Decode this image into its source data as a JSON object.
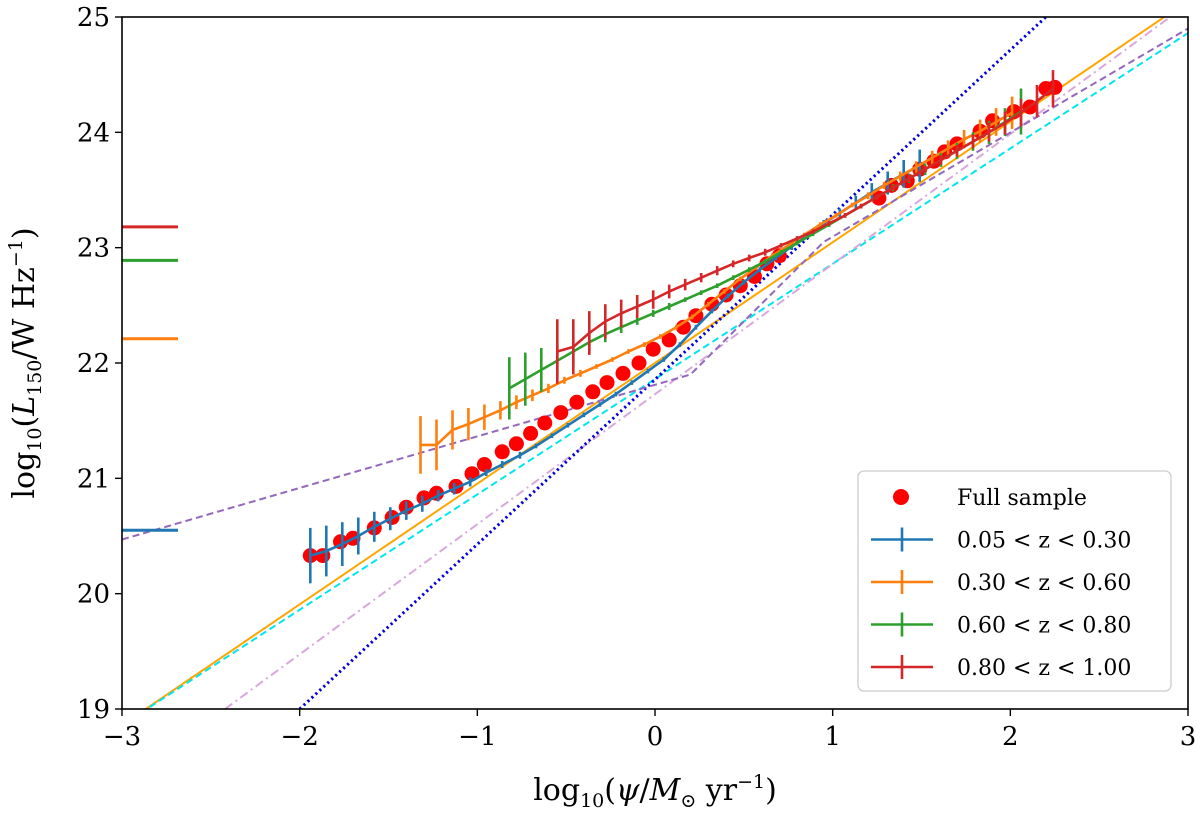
{
  "chart_data": {
    "type": "line",
    "xlabel": "log10(ψ/M⊙ yr−1)",
    "ylabel": "log10(L150/W Hz−1)",
    "xlim": [
      -3,
      3
    ],
    "ylim": [
      19,
      25
    ],
    "xticks": [
      {
        "v": -3,
        "label": "−3"
      },
      {
        "v": -2,
        "label": "−2"
      },
      {
        "v": -1,
        "label": "−1"
      },
      {
        "v": 0,
        "label": "0"
      },
      {
        "v": 1,
        "label": "1"
      },
      {
        "v": 2,
        "label": "2"
      },
      {
        "v": 3,
        "label": "3"
      }
    ],
    "yticks": [
      {
        "v": 19,
        "label": "19"
      },
      {
        "v": 20,
        "label": "20"
      },
      {
        "v": 21,
        "label": "21"
      },
      {
        "v": 22,
        "label": "22"
      },
      {
        "v": 23,
        "label": "23"
      },
      {
        "v": 24,
        "label": "24"
      },
      {
        "v": 25,
        "label": "25"
      }
    ],
    "full_sample": {
      "name": "Full sample",
      "color": "#ff0000",
      "points": [
        [
          -1.94,
          20.33
        ],
        [
          -1.87,
          20.33
        ],
        [
          -1.77,
          20.45
        ],
        [
          -1.7,
          20.48
        ],
        [
          -1.58,
          20.57
        ],
        [
          -1.48,
          20.66
        ],
        [
          -1.4,
          20.75
        ],
        [
          -1.3,
          20.83
        ],
        [
          -1.23,
          20.87
        ],
        [
          -1.12,
          20.93
        ],
        [
          -1.03,
          21.04
        ],
        [
          -0.96,
          21.12
        ],
        [
          -0.86,
          21.23
        ],
        [
          -0.78,
          21.3
        ],
        [
          -0.7,
          21.39
        ],
        [
          -0.62,
          21.48
        ],
        [
          -0.53,
          21.57
        ],
        [
          -0.44,
          21.66
        ],
        [
          -0.35,
          21.75
        ],
        [
          -0.27,
          21.83
        ],
        [
          -0.18,
          21.91
        ],
        [
          -0.09,
          22.0
        ],
        [
          -0.01,
          22.12
        ],
        [
          0.08,
          22.2
        ],
        [
          0.16,
          22.31
        ],
        [
          0.23,
          22.41
        ],
        [
          0.32,
          22.51
        ],
        [
          0.4,
          22.59
        ],
        [
          0.48,
          22.67
        ],
        [
          0.56,
          22.75
        ],
        [
          0.63,
          22.86
        ],
        [
          0.7,
          22.93
        ],
        [
          1.26,
          23.43
        ],
        [
          1.33,
          23.54
        ],
        [
          1.42,
          23.58
        ],
        [
          1.49,
          23.68
        ],
        [
          1.57,
          23.75
        ],
        [
          1.63,
          23.83
        ],
        [
          1.7,
          23.9
        ],
        [
          1.83,
          24.01
        ],
        [
          1.9,
          24.1
        ],
        [
          2.02,
          24.18
        ],
        [
          2.11,
          24.22
        ],
        [
          2.2,
          24.38
        ],
        [
          2.25,
          24.39
        ]
      ]
    },
    "series": [
      {
        "name": "0.05 < z < 0.30",
        "color": "#1f77b4",
        "baseline": 20.55,
        "x": [
          -1.94,
          -1.85,
          -1.76,
          -1.67,
          -1.58,
          -1.49,
          -1.4,
          -1.31,
          -1.22,
          -1.13,
          -1.04,
          -0.95,
          -0.86,
          -0.76,
          -0.67,
          -0.58,
          -0.49,
          -0.4,
          -0.31,
          -0.22,
          -0.13,
          -0.04,
          0.05,
          0.14,
          0.23,
          0.32,
          0.41,
          0.5,
          0.59,
          0.68,
          0.77,
          0.86,
          0.95,
          1.04,
          1.13,
          1.22,
          1.31,
          1.4,
          1.49
        ],
        "y": [
          20.33,
          20.37,
          20.43,
          20.5,
          20.58,
          20.65,
          20.72,
          20.78,
          20.85,
          20.91,
          20.97,
          21.05,
          21.12,
          21.2,
          21.28,
          21.37,
          21.46,
          21.55,
          21.64,
          21.73,
          21.83,
          21.93,
          22.03,
          22.16,
          22.31,
          22.45,
          22.58,
          22.7,
          22.81,
          22.91,
          23.01,
          23.11,
          23.21,
          23.3,
          23.39,
          23.48,
          23.56,
          23.64,
          23.71
        ],
        "err": [
          0.24,
          0.22,
          0.19,
          0.16,
          0.13,
          0.1,
          0.08,
          0.07,
          0.05,
          0.05,
          0.04,
          0.03,
          0.03,
          0.03,
          0.02,
          0.02,
          0.02,
          0.02,
          0.02,
          0.02,
          0.02,
          0.02,
          0.02,
          0.02,
          0.02,
          0.02,
          0.02,
          0.02,
          0.02,
          0.02,
          0.03,
          0.03,
          0.03,
          0.04,
          0.06,
          0.08,
          0.1,
          0.12,
          0.14
        ]
      },
      {
        "name": "0.30 < z < 0.60",
        "color": "#ff7f0e",
        "baseline": 22.21,
        "x": [
          -1.32,
          -1.23,
          -1.14,
          -1.05,
          -0.96,
          -0.87,
          -0.78,
          -0.69,
          -0.6,
          -0.51,
          -0.42,
          -0.33,
          -0.24,
          -0.15,
          -0.06,
          0.03,
          0.12,
          0.21,
          0.3,
          0.39,
          0.48,
          0.57,
          0.66,
          0.75,
          0.84,
          0.93,
          1.02,
          1.11,
          1.2,
          1.29,
          1.38,
          1.47,
          1.56,
          1.65,
          1.74,
          1.83,
          1.92,
          2.01
        ],
        "y": [
          21.29,
          21.29,
          21.42,
          21.47,
          21.53,
          21.59,
          21.66,
          21.72,
          21.78,
          21.85,
          21.91,
          21.97,
          22.03,
          22.1,
          22.16,
          22.23,
          22.31,
          22.4,
          22.51,
          22.62,
          22.73,
          22.83,
          22.93,
          23.02,
          23.11,
          23.2,
          23.28,
          23.37,
          23.45,
          23.54,
          23.62,
          23.7,
          23.78,
          23.86,
          23.94,
          24.01,
          24.09,
          24.17
        ],
        "err": [
          0.25,
          0.22,
          0.17,
          0.14,
          0.11,
          0.08,
          0.06,
          0.05,
          0.04,
          0.03,
          0.03,
          0.02,
          0.02,
          0.02,
          0.02,
          0.02,
          0.02,
          0.02,
          0.02,
          0.02,
          0.02,
          0.02,
          0.02,
          0.02,
          0.02,
          0.02,
          0.02,
          0.02,
          0.03,
          0.03,
          0.04,
          0.05,
          0.06,
          0.07,
          0.08,
          0.1,
          0.12,
          0.14
        ]
      },
      {
        "name": "0.60 < z < 0.80",
        "color": "#2ca02c",
        "baseline": 22.89,
        "x": [
          -0.82,
          -0.73,
          -0.64,
          -0.55,
          -0.46,
          -0.37,
          -0.28,
          -0.19,
          -0.1,
          -0.01,
          0.08,
          0.17,
          0.26,
          0.35,
          0.44,
          0.53,
          0.62,
          0.71,
          0.8,
          0.89,
          0.98,
          1.07,
          1.16,
          1.25,
          1.34,
          1.43,
          1.52,
          1.61,
          1.7,
          1.79,
          1.88,
          1.97,
          2.06
        ],
        "y": [
          21.78,
          21.86,
          21.94,
          22.02,
          22.1,
          22.18,
          22.25,
          22.31,
          22.37,
          22.43,
          22.49,
          22.55,
          22.61,
          22.67,
          22.74,
          22.81,
          22.88,
          22.96,
          23.04,
          23.12,
          23.2,
          23.28,
          23.36,
          23.44,
          23.52,
          23.6,
          23.68,
          23.76,
          23.84,
          23.92,
          24.0,
          24.09,
          24.18
        ],
        "err": [
          0.27,
          0.23,
          0.19,
          0.15,
          0.12,
          0.09,
          0.07,
          0.05,
          0.04,
          0.03,
          0.03,
          0.02,
          0.02,
          0.02,
          0.02,
          0.02,
          0.02,
          0.02,
          0.02,
          0.02,
          0.02,
          0.02,
          0.02,
          0.02,
          0.03,
          0.04,
          0.05,
          0.06,
          0.07,
          0.08,
          0.1,
          0.12,
          0.2
        ]
      },
      {
        "name": "0.80 < z < 1.00",
        "color": "#d62728",
        "baseline": 23.18,
        "x": [
          -0.55,
          -0.46,
          -0.37,
          -0.28,
          -0.19,
          -0.1,
          -0.01,
          0.08,
          0.17,
          0.26,
          0.35,
          0.44,
          0.53,
          0.62,
          0.71,
          0.8,
          0.89,
          0.98,
          1.07,
          1.16,
          1.25,
          1.34,
          1.43,
          1.52,
          1.61,
          1.7,
          1.79,
          1.88,
          1.97,
          2.06,
          2.15,
          2.24
        ],
        "y": [
          22.1,
          22.14,
          22.26,
          22.36,
          22.43,
          22.49,
          22.55,
          22.62,
          22.68,
          22.74,
          22.8,
          22.86,
          22.91,
          22.96,
          23.02,
          23.08,
          23.14,
          23.21,
          23.28,
          23.36,
          23.44,
          23.52,
          23.6,
          23.68,
          23.76,
          23.84,
          23.92,
          24.0,
          24.08,
          24.17,
          24.27,
          24.38
        ],
        "err": [
          0.28,
          0.24,
          0.19,
          0.15,
          0.12,
          0.1,
          0.08,
          0.06,
          0.05,
          0.04,
          0.04,
          0.03,
          0.03,
          0.03,
          0.02,
          0.02,
          0.02,
          0.02,
          0.02,
          0.02,
          0.02,
          0.02,
          0.03,
          0.03,
          0.04,
          0.05,
          0.06,
          0.08,
          0.1,
          0.12,
          0.14,
          0.16
        ]
      }
    ],
    "reference_lines": [
      {
        "name": "orange-solid-relation",
        "color": "#ffa500",
        "style": "solid",
        "points": [
          [
            -3,
            18.86
          ],
          [
            3,
            25.14
          ]
        ]
      },
      {
        "name": "cyan-dashed-relation",
        "color": "#00e5ee",
        "style": "dashed",
        "points": [
          [
            -3,
            18.86
          ],
          [
            3,
            24.86
          ]
        ]
      },
      {
        "name": "plum-dashdot-relation",
        "color": "#d8a8dc",
        "style": "dashdot",
        "points": [
          [
            -2.42,
            19.0
          ],
          [
            2.9,
            25.0
          ]
        ]
      },
      {
        "name": "blue-dotted-relation",
        "color": "#0000dd",
        "style": "dotted",
        "points": [
          [
            -2.0,
            19.0
          ],
          [
            2.2,
            25.0
          ]
        ]
      },
      {
        "name": "purple-dashed-broken-relation",
        "color": "#9467bd",
        "style": "dashed",
        "points": [
          [
            -3,
            20.47
          ],
          [
            0.2,
            21.9
          ],
          [
            0.95,
            23.05
          ],
          [
            3,
            24.9
          ]
        ]
      }
    ],
    "legend": {
      "position": "lower-right",
      "entries": [
        {
          "label": "Full sample",
          "marker": "dot",
          "color": "#ff0000"
        },
        {
          "label": "0.05 < z < 0.30",
          "marker": "errorline",
          "color": "#1f77b4"
        },
        {
          "label": "0.30 < z < 0.60",
          "marker": "errorline",
          "color": "#ff7f0e"
        },
        {
          "label": "0.60 < z < 0.80",
          "marker": "errorline",
          "color": "#2ca02c"
        },
        {
          "label": "0.80 < z < 1.00",
          "marker": "errorline",
          "color": "#d62728"
        }
      ]
    }
  }
}
